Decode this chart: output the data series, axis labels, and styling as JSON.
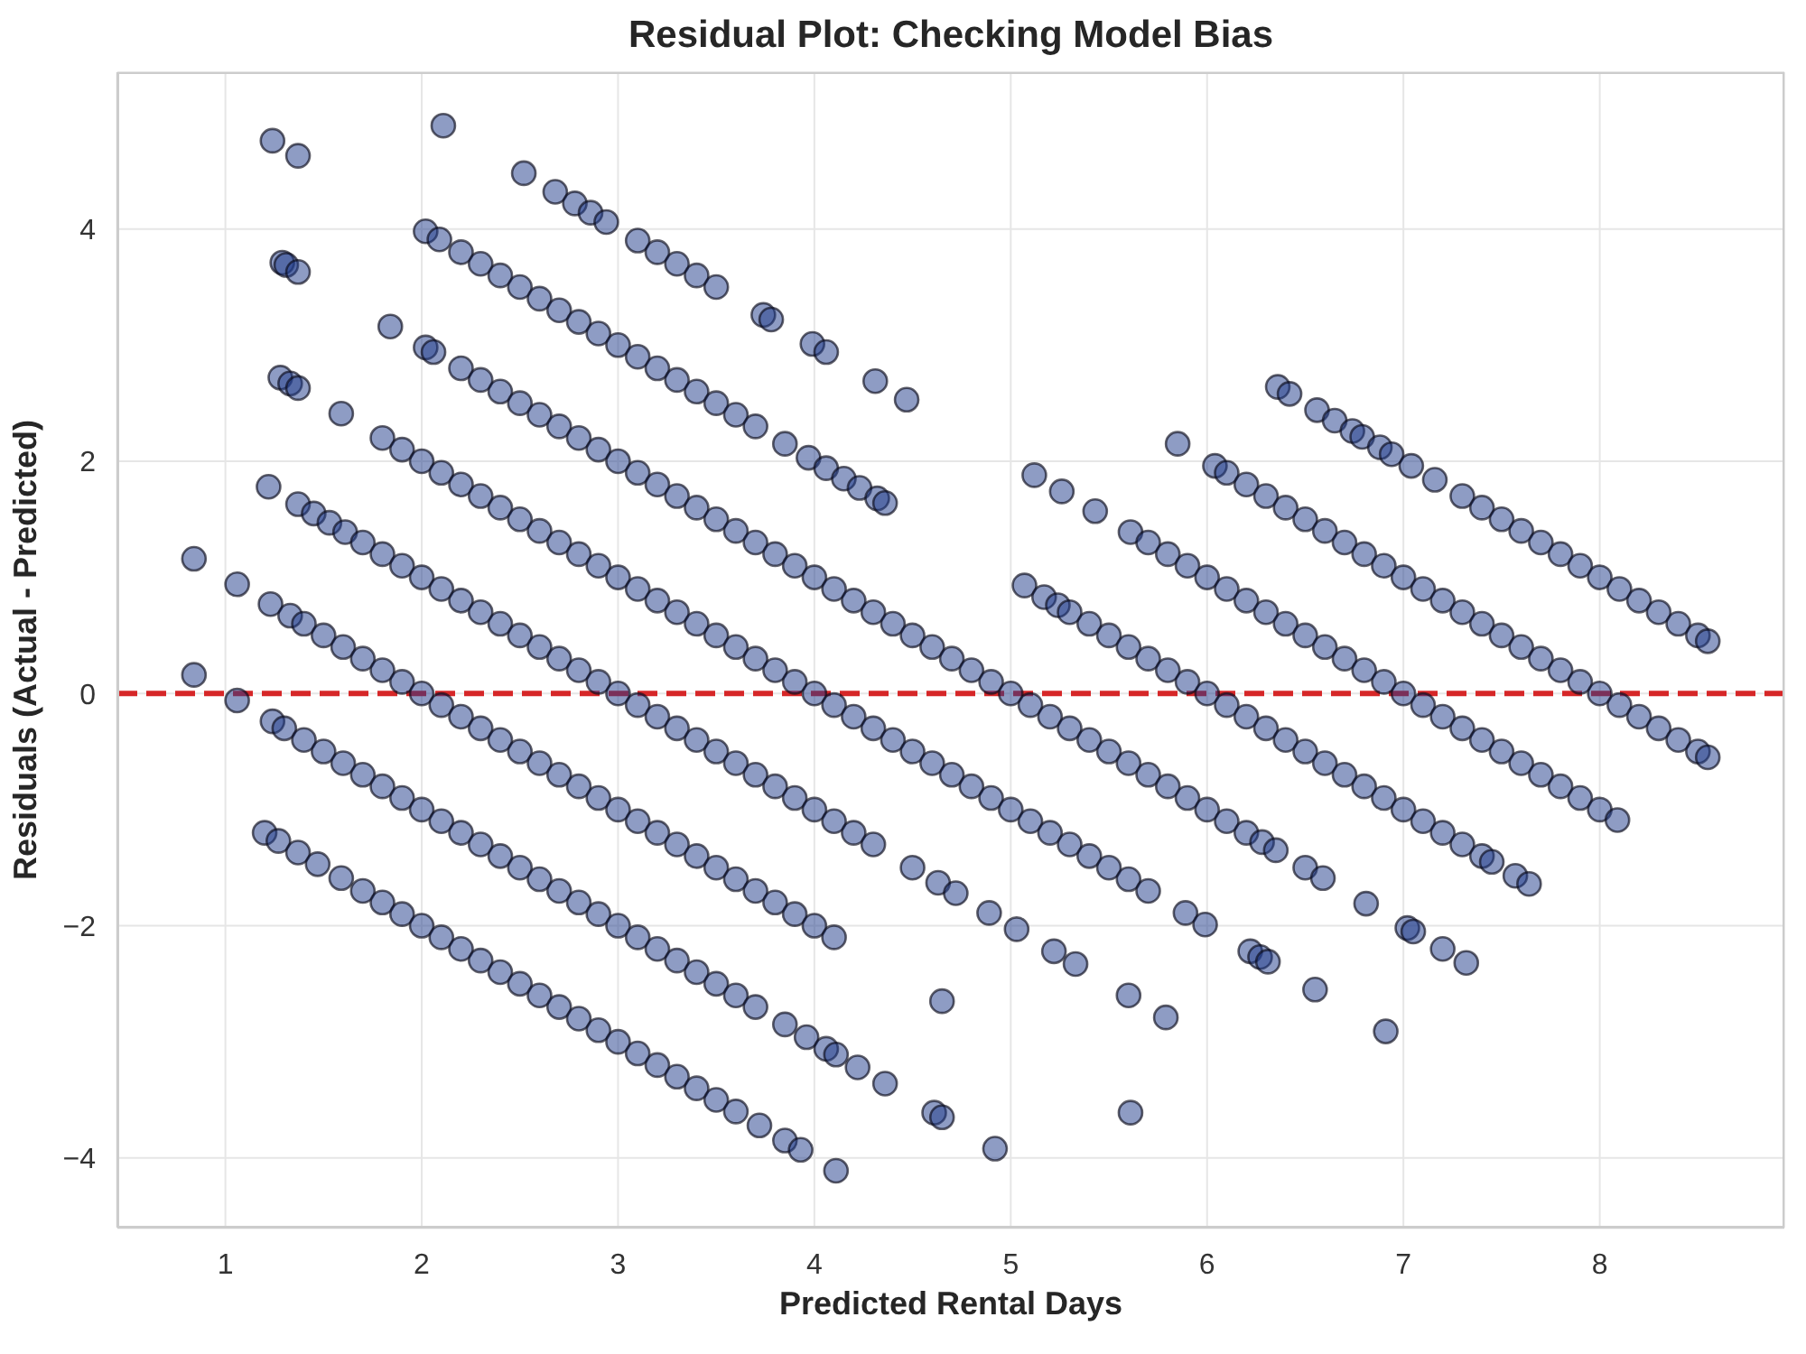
{
  "chart_data": {
    "type": "scatter",
    "title": "Residual Plot: Checking Model Bias",
    "xlabel": "Predicted Rental Days",
    "ylabel": "Residuals (Actual - Predicted)",
    "x": [
      1.2,
      1.27,
      1.37,
      1.47,
      1.59,
      1.7,
      1.8,
      1.9,
      2.0,
      2.1,
      2.2,
      2.3,
      2.4,
      2.5,
      2.6,
      2.7,
      2.8,
      2.9,
      3.0,
      3.1,
      3.2,
      3.3,
      3.4,
      3.5,
      3.6,
      3.72,
      3.85,
      3.93,
      4.11,
      0.84,
      1.06,
      1.24,
      1.3,
      1.4,
      1.5,
      1.6,
      1.7,
      1.8,
      1.9,
      2.0,
      2.1,
      2.2,
      2.3,
      2.4,
      2.5,
      2.6,
      2.7,
      2.8,
      2.9,
      3.0,
      3.1,
      3.2,
      3.3,
      3.4,
      3.5,
      3.6,
      3.7,
      3.85,
      3.96,
      4.06,
      4.11,
      4.22,
      4.36,
      4.61,
      4.65,
      4.92,
      0.84,
      1.06,
      1.23,
      1.33,
      1.4,
      1.5,
      1.6,
      1.7,
      1.8,
      1.9,
      2.0,
      2.1,
      2.2,
      2.3,
      2.4,
      2.5,
      2.6,
      2.7,
      2.8,
      2.9,
      3.0,
      3.1,
      3.2,
      3.3,
      3.4,
      3.5,
      3.6,
      3.7,
      3.8,
      3.9,
      4.0,
      4.1,
      4.65,
      5.61,
      1.22,
      1.37,
      1.45,
      1.53,
      1.61,
      1.7,
      1.8,
      1.9,
      2.0,
      2.1,
      2.2,
      2.3,
      2.4,
      2.5,
      2.6,
      2.7,
      2.8,
      2.9,
      3.0,
      3.1,
      3.2,
      3.3,
      3.4,
      3.5,
      3.6,
      3.7,
      3.8,
      3.9,
      4.0,
      4.1,
      4.2,
      4.3,
      4.5,
      4.63,
      4.72,
      4.89,
      5.03,
      5.22,
      5.33,
      5.6,
      5.79,
      1.28,
      1.33,
      1.37,
      1.59,
      1.8,
      1.9,
      2.0,
      2.1,
      2.2,
      2.3,
      2.4,
      2.5,
      2.6,
      2.7,
      2.8,
      2.9,
      3.0,
      3.1,
      3.2,
      3.3,
      3.4,
      3.5,
      3.6,
      3.7,
      3.8,
      3.9,
      4.0,
      4.1,
      4.2,
      4.3,
      4.4,
      4.5,
      4.6,
      4.7,
      4.8,
      4.9,
      5.0,
      5.1,
      5.2,
      5.3,
      5.4,
      5.5,
      5.6,
      5.7,
      5.89,
      5.99,
      6.22,
      6.27,
      6.31,
      6.55,
      6.91,
      1.29,
      1.31,
      1.37,
      1.84,
      2.02,
      2.06,
      2.2,
      2.3,
      2.4,
      2.5,
      2.6,
      2.7,
      2.8,
      2.9,
      3.0,
      3.1,
      3.2,
      3.3,
      3.4,
      3.5,
      3.6,
      3.7,
      3.8,
      3.9,
      4.0,
      4.1,
      4.2,
      4.3,
      4.4,
      4.5,
      4.6,
      4.7,
      4.8,
      4.9,
      5.0,
      5.1,
      5.2,
      5.3,
      5.4,
      5.5,
      5.6,
      5.7,
      5.8,
      5.9,
      6.0,
      6.1,
      6.2,
      6.28,
      6.35,
      6.5,
      6.59,
      6.81,
      7.02,
      7.05,
      7.2,
      7.32,
      1.24,
      1.37,
      2.02,
      2.09,
      2.2,
      2.3,
      2.4,
      2.5,
      2.6,
      2.7,
      2.8,
      2.9,
      3.0,
      3.1,
      3.2,
      3.3,
      3.4,
      3.5,
      3.6,
      3.7,
      3.85,
      3.97,
      4.06,
      4.15,
      4.23,
      4.32,
      4.36,
      5.07,
      5.17,
      5.24,
      5.3,
      5.4,
      5.5,
      5.6,
      5.7,
      5.8,
      5.9,
      6.0,
      6.1,
      6.2,
      6.3,
      6.4,
      6.5,
      6.6,
      6.7,
      6.8,
      6.9,
      7.0,
      7.1,
      7.2,
      7.3,
      7.4,
      7.45,
      7.57,
      7.64,
      2.11,
      2.52,
      2.68,
      2.78,
      2.86,
      2.94,
      3.1,
      3.2,
      3.3,
      3.4,
      3.5,
      3.74,
      3.78,
      3.99,
      4.06,
      4.31,
      4.47,
      5.12,
      5.26,
      5.43,
      5.61,
      5.7,
      5.8,
      5.9,
      6.0,
      6.1,
      6.2,
      6.3,
      6.4,
      6.5,
      6.6,
      6.7,
      6.8,
      6.9,
      7.0,
      7.1,
      7.2,
      7.3,
      7.4,
      7.5,
      7.6,
      7.7,
      7.8,
      7.9,
      8.0,
      8.09,
      5.85,
      6.04,
      6.1,
      6.2,
      6.3,
      6.4,
      6.5,
      6.6,
      6.7,
      6.8,
      6.9,
      7.0,
      7.1,
      7.2,
      7.3,
      7.4,
      7.5,
      7.6,
      7.7,
      7.8,
      7.9,
      8.0,
      8.1,
      8.2,
      8.3,
      8.4,
      8.5,
      8.55,
      6.36,
      6.42,
      6.56,
      6.65,
      6.74,
      6.79,
      6.88,
      6.94,
      7.04,
      7.16,
      7.3,
      7.4,
      7.5,
      7.6,
      7.7,
      7.8,
      7.9,
      8.0,
      8.1,
      8.2,
      8.3,
      8.4,
      8.5,
      8.55
    ],
    "values": [
      -1.2,
      -1.27,
      -1.37,
      -1.47,
      -1.59,
      -1.7,
      -1.8,
      -1.9,
      -2.0,
      -2.1,
      -2.2,
      -2.3,
      -2.4,
      -2.5,
      -2.6,
      -2.7,
      -2.8,
      -2.9,
      -3.0,
      -3.1,
      -3.2,
      -3.3,
      -3.4,
      -3.5,
      -3.6,
      -3.72,
      -3.85,
      -3.93,
      -4.11,
      0.16,
      -0.06,
      -0.24,
      -0.3,
      -0.4,
      -0.5,
      -0.6,
      -0.7,
      -0.8,
      -0.9,
      -1.0,
      -1.1,
      -1.2,
      -1.3,
      -1.4,
      -1.5,
      -1.6,
      -1.7,
      -1.8,
      -1.9,
      -2.0,
      -2.1,
      -2.2,
      -2.3,
      -2.4,
      -2.5,
      -2.6,
      -2.7,
      -2.85,
      -2.96,
      -3.06,
      -3.11,
      -3.22,
      -3.36,
      -3.61,
      -3.65,
      -3.92,
      1.16,
      0.94,
      0.77,
      0.67,
      0.6,
      0.5,
      0.4,
      0.3,
      0.2,
      0.1,
      0.0,
      -0.1,
      -0.2,
      -0.3,
      -0.4,
      -0.5,
      -0.6,
      -0.7,
      -0.8,
      -0.9,
      -1.0,
      -1.1,
      -1.2,
      -1.3,
      -1.4,
      -1.5,
      -1.6,
      -1.7,
      -1.8,
      -1.9,
      -2.0,
      -2.1,
      -2.65,
      -3.61,
      1.78,
      1.63,
      1.55,
      1.47,
      1.39,
      1.3,
      1.2,
      1.1,
      1.0,
      0.9,
      0.8,
      0.7,
      0.6,
      0.5,
      0.4,
      0.3,
      0.2,
      0.1,
      0.0,
      -0.1,
      -0.2,
      -0.3,
      -0.4,
      -0.5,
      -0.6,
      -0.7,
      -0.8,
      -0.9,
      -1.0,
      -1.1,
      -1.2,
      -1.3,
      -1.5,
      -1.63,
      -1.72,
      -1.89,
      -2.03,
      -2.22,
      -2.33,
      -2.6,
      -2.79,
      2.72,
      2.67,
      2.63,
      2.41,
      2.2,
      2.1,
      2.0,
      1.9,
      1.8,
      1.7,
      1.6,
      1.5,
      1.4,
      1.3,
      1.2,
      1.1,
      1.0,
      0.9,
      0.8,
      0.7,
      0.6,
      0.5,
      0.4,
      0.3,
      0.2,
      0.1,
      0.0,
      -0.1,
      -0.2,
      -0.3,
      -0.4,
      -0.5,
      -0.6,
      -0.7,
      -0.8,
      -0.9,
      -1.0,
      -1.1,
      -1.2,
      -1.3,
      -1.4,
      -1.5,
      -1.6,
      -1.7,
      -1.89,
      -1.99,
      -2.22,
      -2.27,
      -2.31,
      -2.55,
      -2.91,
      3.71,
      3.69,
      3.63,
      3.16,
      2.98,
      2.94,
      2.8,
      2.7,
      2.6,
      2.5,
      2.4,
      2.3,
      2.2,
      2.1,
      2.0,
      1.9,
      1.8,
      1.7,
      1.6,
      1.5,
      1.4,
      1.3,
      1.2,
      1.1,
      1.0,
      0.9,
      0.8,
      0.7,
      0.6,
      0.5,
      0.4,
      0.3,
      0.2,
      0.1,
      0.0,
      -0.1,
      -0.2,
      -0.3,
      -0.4,
      -0.5,
      -0.6,
      -0.7,
      -0.8,
      -0.9,
      -1.0,
      -1.1,
      -1.2,
      -1.28,
      -1.35,
      -1.5,
      -1.59,
      -1.81,
      -2.02,
      -2.05,
      -2.2,
      -2.32,
      4.76,
      4.63,
      3.98,
      3.91,
      3.8,
      3.7,
      3.6,
      3.5,
      3.4,
      3.3,
      3.2,
      3.1,
      3.0,
      2.9,
      2.8,
      2.7,
      2.6,
      2.5,
      2.4,
      2.3,
      2.15,
      2.03,
      1.94,
      1.85,
      1.77,
      1.68,
      1.64,
      0.93,
      0.83,
      0.76,
      0.7,
      0.6,
      0.5,
      0.4,
      0.3,
      0.2,
      0.1,
      0.0,
      -0.1,
      -0.2,
      -0.3,
      -0.4,
      -0.5,
      -0.6,
      -0.7,
      -0.8,
      -0.9,
      -1.0,
      -1.1,
      -1.2,
      -1.3,
      -1.4,
      -1.45,
      -1.57,
      -1.64,
      4.89,
      4.48,
      4.32,
      4.22,
      4.14,
      4.06,
      3.9,
      3.8,
      3.7,
      3.6,
      3.5,
      3.26,
      3.22,
      3.01,
      2.94,
      2.69,
      2.53,
      1.88,
      1.74,
      1.57,
      1.39,
      1.3,
      1.2,
      1.1,
      1.0,
      0.9,
      0.8,
      0.7,
      0.6,
      0.5,
      0.4,
      0.3,
      0.2,
      0.1,
      0.0,
      -0.1,
      -0.2,
      -0.3,
      -0.4,
      -0.5,
      -0.6,
      -0.7,
      -0.8,
      -0.9,
      -1.0,
      -1.09,
      2.15,
      1.96,
      1.9,
      1.8,
      1.7,
      1.6,
      1.5,
      1.4,
      1.3,
      1.2,
      1.1,
      1.0,
      0.9,
      0.8,
      0.7,
      0.6,
      0.5,
      0.4,
      0.3,
      0.2,
      0.1,
      0.0,
      -0.1,
      -0.2,
      -0.3,
      -0.4,
      -0.5,
      -0.55,
      2.64,
      2.58,
      2.44,
      2.35,
      2.26,
      2.21,
      2.12,
      2.06,
      1.96,
      1.84,
      1.7,
      1.6,
      1.5,
      1.4,
      1.3,
      1.2,
      1.1,
      1.0,
      0.9,
      0.8,
      0.7,
      0.6,
      0.5,
      0.45
    ],
    "color": "#1e3a8a",
    "marker": "circle",
    "xlim": [
      0.45,
      8.94
    ],
    "xticks": [
      1,
      2,
      3,
      4,
      5,
      6,
      7,
      8
    ],
    "ylim": [
      -4.6,
      5.35
    ],
    "yticks": [
      -4,
      -2,
      0,
      2,
      4
    ],
    "grid": true,
    "ref_lines": [
      {
        "axis": "y",
        "value": 0,
        "color": "#d62728",
        "line_style": "dashed"
      }
    ]
  }
}
